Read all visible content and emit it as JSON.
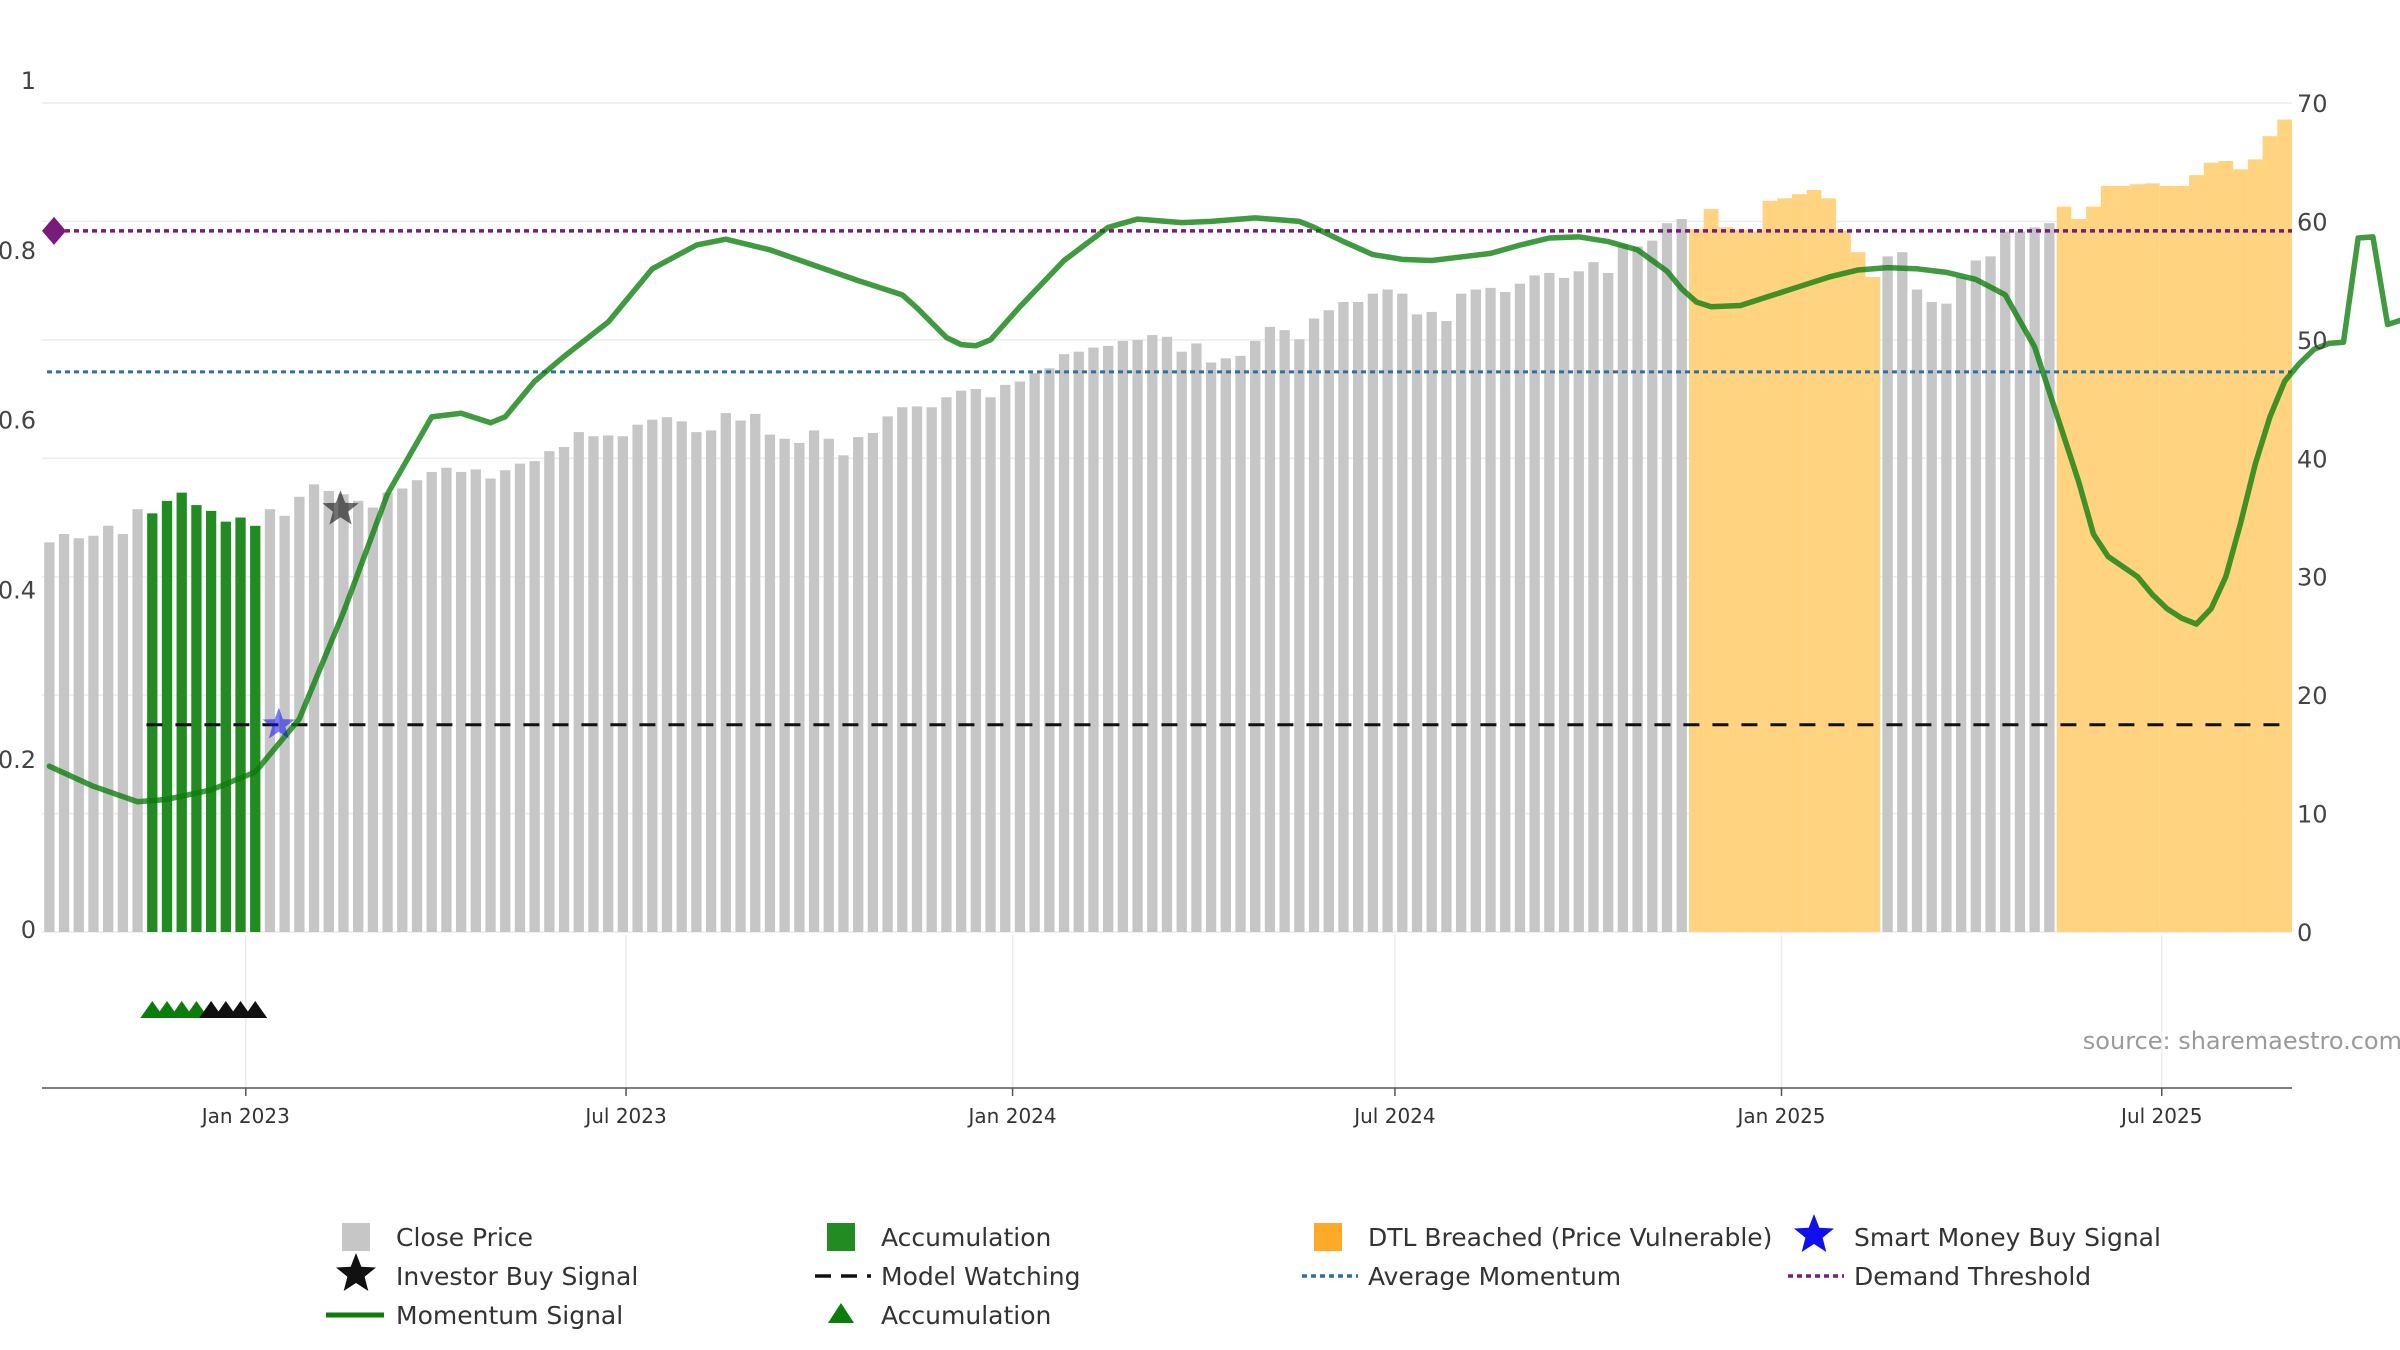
{
  "source_text": "source: sharemaestro.com",
  "colors": {
    "close_price": "#c6c6c6",
    "accumulation": "#228b22",
    "dtl_breached": "#ffd37f",
    "momentum": "#0a7d0a",
    "average_momentum": "#2f6f9f",
    "demand_threshold": "#7a1a7a",
    "model_watching": "#111111",
    "smart_money": "#1010ee",
    "investor": "#111111",
    "grid": "#ececec"
  },
  "chart_data": {
    "type": "bar",
    "x_ticks": [
      "Jan 2023",
      "Jul 2023",
      "Jan 2024",
      "Jul 2024",
      "Jan 2025",
      "Jul 2025"
    ],
    "left_axis": {
      "range": [
        0,
        1
      ],
      "ticks": [
        "0",
        "0.2",
        "0.4",
        "0.6",
        "0.8",
        "1"
      ]
    },
    "right_axis": {
      "range": [
        0,
        70
      ],
      "ticks": [
        "0",
        "10",
        "20",
        "30",
        "40",
        "50",
        "60",
        "70"
      ]
    },
    "close_price": {
      "name": "Close Price",
      "start_week": "2022-09-26",
      "values": [
        0.47,
        0.48,
        0.475,
        0.478,
        0.49,
        0.48,
        0.51,
        0.505,
        0.52,
        0.53,
        0.515,
        0.508,
        0.495,
        0.5,
        0.49,
        0.51,
        0.502,
        0.525,
        0.54,
        0.532,
        0.528,
        0.52,
        0.512,
        0.53,
        0.535,
        0.545,
        0.555,
        0.56,
        0.555,
        0.558,
        0.547,
        0.557,
        0.565,
        0.568,
        0.58,
        0.585,
        0.603,
        0.598,
        0.599,
        0.598,
        0.612,
        0.618,
        0.621,
        0.616,
        0.603,
        0.605,
        0.626,
        0.617,
        0.625,
        0.6,
        0.595,
        0.59,
        0.605,
        0.595,
        0.575,
        0.597,
        0.602,
        0.622,
        0.633,
        0.634,
        0.633,
        0.645,
        0.653,
        0.655,
        0.645,
        0.66,
        0.664,
        0.674,
        0.68,
        0.697,
        0.7,
        0.705,
        0.707,
        0.713,
        0.714,
        0.72,
        0.718,
        0.7,
        0.71,
        0.687,
        0.692,
        0.695,
        0.713,
        0.73,
        0.726,
        0.715,
        0.74,
        0.75,
        0.76,
        0.76,
        0.77,
        0.775,
        0.77,
        0.745,
        0.748,
        0.737,
        0.77,
        0.775,
        0.777,
        0.772,
        0.782,
        0.792,
        0.795,
        0.789,
        0.797,
        0.808,
        0.795,
        0.83,
        0.827,
        0.834,
        0.855,
        0.86,
        0.848,
        0.872,
        0.85,
        0.847,
        0.845,
        0.882,
        0.885,
        0.89,
        0.895,
        0.885,
        0.846,
        0.82,
        0.79,
        0.815,
        0.82,
        0.775,
        0.76,
        0.758,
        0.79,
        0.81,
        0.815,
        0.845,
        0.845,
        0.85,
        0.855,
        0.875,
        0.86,
        0.875,
        0.9,
        0.9,
        0.902,
        0.903,
        0.9,
        0.9,
        0.913,
        0.928,
        0.93,
        0.92,
        0.932,
        0.96,
        0.98
      ]
    },
    "accumulation_bars": {
      "name": "Accumulation",
      "from_index": 7,
      "to_index": 14
    },
    "dtl_breached_ranges": {
      "name": "DTL Breached (Price Vulnerable)",
      "ranges": [
        [
          112,
          124
        ],
        [
          137,
          155
        ]
      ]
    },
    "momentum_signal": {
      "name": "Momentum Signal",
      "points": [
        [
          0,
          14.0
        ],
        [
          3,
          12.3
        ],
        [
          6,
          11.0
        ],
        [
          8,
          11.2
        ],
        [
          11,
          12.0
        ],
        [
          14,
          13.5
        ],
        [
          17,
          18.0
        ],
        [
          20,
          27.0
        ],
        [
          23,
          37.0
        ],
        [
          26,
          43.5
        ],
        [
          28,
          43.8
        ],
        [
          30,
          43.0
        ],
        [
          31,
          43.5
        ],
        [
          33,
          46.5
        ],
        [
          35,
          48.6
        ],
        [
          38,
          51.5
        ],
        [
          41,
          56.0
        ],
        [
          44,
          58.0
        ],
        [
          46,
          58.5
        ],
        [
          49,
          57.6
        ],
        [
          52,
          56.3
        ],
        [
          55,
          55.0
        ],
        [
          58,
          53.8
        ],
        [
          59,
          52.7
        ],
        [
          61,
          50.2
        ],
        [
          62,
          49.6
        ],
        [
          63,
          49.5
        ],
        [
          64,
          50.0
        ],
        [
          66,
          52.8
        ],
        [
          69,
          56.7
        ],
        [
          72,
          59.5
        ],
        [
          74,
          60.2
        ],
        [
          77,
          59.9
        ],
        [
          79,
          60.0
        ],
        [
          82,
          60.3
        ],
        [
          85,
          60.0
        ],
        [
          86,
          59.5
        ],
        [
          88,
          58.3
        ],
        [
          90,
          57.2
        ],
        [
          92,
          56.8
        ],
        [
          94,
          56.7
        ],
        [
          96,
          57.0
        ],
        [
          98,
          57.3
        ],
        [
          100,
          58.0
        ],
        [
          102,
          58.6
        ],
        [
          104,
          58.7
        ],
        [
          106,
          58.3
        ],
        [
          108,
          57.6
        ],
        [
          110,
          55.8
        ],
        [
          111,
          54.3
        ],
        [
          112,
          53.2
        ],
        [
          113,
          52.8
        ],
        [
          115,
          52.9
        ],
        [
          117,
          53.7
        ],
        [
          119,
          54.5
        ],
        [
          121,
          55.3
        ],
        [
          123,
          55.9
        ],
        [
          125,
          56.1
        ],
        [
          127,
          56.0
        ],
        [
          129,
          55.7
        ],
        [
          131,
          55.1
        ],
        [
          133,
          53.8
        ],
        [
          135,
          49.4
        ],
        [
          137,
          41.8
        ],
        [
          138,
          38.0
        ],
        [
          139,
          33.6
        ],
        [
          140,
          31.7
        ],
        [
          142,
          30.0
        ],
        [
          143,
          28.5
        ],
        [
          144,
          27.3
        ],
        [
          145,
          26.5
        ],
        [
          146,
          26.0
        ],
        [
          147,
          27.3
        ],
        [
          148,
          30.0
        ],
        [
          149,
          34.5
        ],
        [
          150,
          39.5
        ],
        [
          151,
          43.5
        ],
        [
          152,
          46.5
        ],
        [
          153,
          48.0
        ],
        [
          154,
          49.2
        ],
        [
          155,
          49.7
        ],
        [
          156,
          49.8
        ],
        [
          157,
          58.6
        ],
        [
          158,
          58.7
        ],
        [
          159,
          51.3
        ],
        [
          160,
          51.7
        ],
        [
          161,
          52.2
        ]
      ]
    },
    "average_momentum": {
      "name": "Average Momentum",
      "value": 47.3
    },
    "demand_threshold": {
      "name": "Demand Threshold",
      "value": 59.2
    },
    "model_watching": {
      "name": "Model Watching",
      "value": 0.25,
      "from_index": 7
    },
    "smart_money_buy_signal": {
      "name": "Smart Money Buy Signal",
      "index": 15.6,
      "value": 0.25
    },
    "investor_buy_signal": {
      "name": "Investor Buy Signal",
      "index": 19.8,
      "value": 0.51
    },
    "accumulation_triangles": {
      "name": "Accumulation",
      "green": [
        7,
        8,
        9,
        10
      ],
      "black": [
        11,
        12,
        13,
        14
      ]
    },
    "legend": {
      "close_price": "Close Price",
      "accumulation_bar": "Accumulation",
      "dtl": "DTL Breached (Price Vulnerable)",
      "smart_money": "Smart Money Buy Signal",
      "investor": "Investor Buy Signal",
      "model_watching": "Model Watching",
      "average_momentum": "Average Momentum",
      "demand_threshold": "Demand Threshold",
      "momentum": "Momentum Signal",
      "accumulation_tri": "Accumulation"
    }
  }
}
